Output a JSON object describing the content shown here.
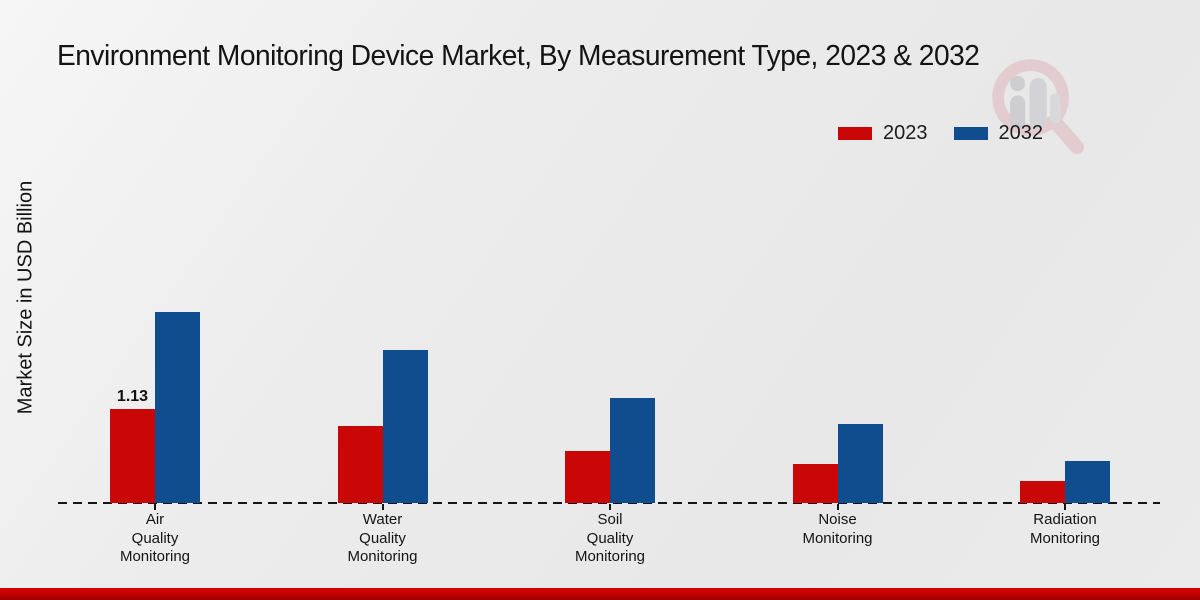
{
  "chart_data": {
    "type": "bar",
    "title": "Environment Monitoring Device Market, By Measurement Type, 2023 & 2032",
    "ylabel": "Market Size in USD Billion",
    "xlabel": "",
    "categories": [
      "Air\nQuality\nMonitoring",
      "Water\nQuality\nMonitoring",
      "Soil\nQuality\nMonitoring",
      "Noise\nMonitoring",
      "Radiation\nMonitoring"
    ],
    "series": [
      {
        "name": "2023",
        "color": "#c90707",
        "values": [
          1.13,
          0.92,
          0.62,
          0.47,
          0.26
        ],
        "data_labels": [
          "1.13",
          "",
          "",
          "",
          ""
        ]
      },
      {
        "name": "2032",
        "color": "#0f4d8f",
        "values": [
          2.29,
          1.84,
          1.26,
          0.95,
          0.5
        ],
        "data_labels": [
          "",
          "",
          "",
          "",
          ""
        ]
      }
    ],
    "legend_position": "top-right",
    "grid": false,
    "baseline_style": "dashed",
    "ylim": [
      0,
      4.8
    ]
  },
  "accents": {
    "footer_bar_color": "#c30101",
    "watermark_ring_color": "#dfb6bb",
    "watermark_bar_color": "#b9b9be"
  }
}
